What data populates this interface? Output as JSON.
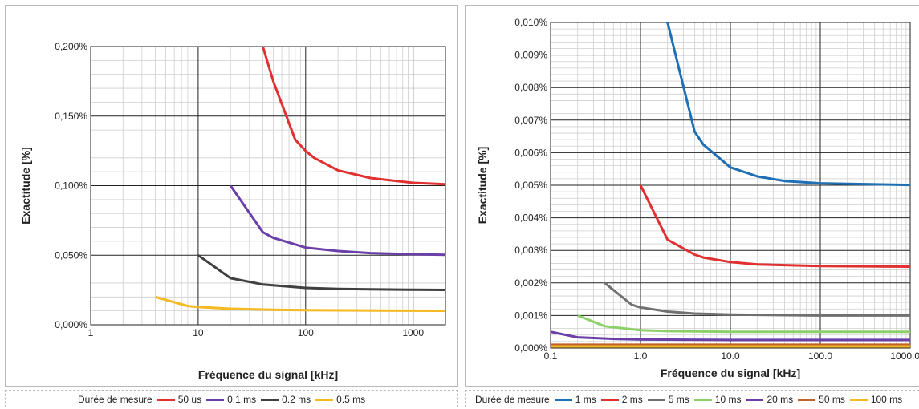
{
  "chart_data": [
    {
      "type": "line",
      "xscale": "log",
      "xlim": [
        1,
        2000
      ],
      "ylim": [
        0,
        0.2
      ],
      "xticks": [
        "1",
        "10",
        "100",
        "1000"
      ],
      "yticks": [
        "0,000%",
        "0,050%",
        "0,100%",
        "0,150%",
        "0,200%"
      ],
      "xlabel": "Fréquence du signal [kHz]",
      "ylabel": "Exactitude [%]",
      "grid": true,
      "legend_title": "Durée de mesure",
      "legend_position": "bottom",
      "series": [
        {
          "name": "50 us",
          "color": "#e03030",
          "x": [
            40,
            50,
            80,
            100,
            120,
            200,
            400,
            1000,
            2000
          ],
          "y": [
            0.2,
            0.175,
            0.133,
            0.125,
            0.12,
            0.111,
            0.1055,
            0.102,
            0.101
          ]
        },
        {
          "name": "0.1 ms",
          "color": "#6a3fa8",
          "x": [
            20,
            40,
            50,
            100,
            200,
            400,
            1000,
            2000
          ],
          "y": [
            0.1,
            0.0665,
            0.0625,
            0.0555,
            0.053,
            0.0515,
            0.0507,
            0.0503
          ]
        },
        {
          "name": "0.2 ms",
          "color": "#404040",
          "x": [
            10,
            20,
            40,
            100,
            200,
            400,
            1000,
            2000
          ],
          "y": [
            0.05,
            0.0335,
            0.029,
            0.0265,
            0.0258,
            0.0255,
            0.0252,
            0.0251
          ]
        },
        {
          "name": "0.5 ms",
          "color": "#f5b921",
          "x": [
            4,
            8,
            10,
            20,
            50,
            100,
            500,
            2000
          ],
          "y": [
            0.02,
            0.0135,
            0.0128,
            0.0115,
            0.0108,
            0.0105,
            0.0102,
            0.0101
          ]
        }
      ]
    },
    {
      "type": "line",
      "xscale": "log",
      "xlim": [
        0.1,
        1000
      ],
      "ylim": [
        0,
        0.01
      ],
      "xticks": [
        "0.1",
        "1.0",
        "10.0",
        "100.0",
        "1000.0"
      ],
      "yticks": [
        "0,000%",
        "0,001%",
        "0,002%",
        "0,003%",
        "0,004%",
        "0,005%",
        "0,006%",
        "0,007%",
        "0,008%",
        "0,009%",
        "0,010%"
      ],
      "xlabel": "Fréquence du signal [kHz]",
      "ylabel": "Exactitude [%]",
      "grid": true,
      "legend_title": "Durée de mesure",
      "legend_position": "bottom",
      "series": [
        {
          "name": "1 ms",
          "color": "#1f6fb4",
          "x": [
            2,
            4,
            5,
            10,
            20,
            40,
            100,
            1000
          ],
          "y": [
            0.01,
            0.00665,
            0.00625,
            0.00555,
            0.00527,
            0.00513,
            0.00506,
            0.00501
          ]
        },
        {
          "name": "2 ms",
          "color": "#e03030",
          "x": [
            1,
            2,
            4,
            5,
            10,
            20,
            100,
            1000
          ],
          "y": [
            0.005,
            0.00333,
            0.00287,
            0.00278,
            0.00264,
            0.00257,
            0.00252,
            0.0025
          ]
        },
        {
          "name": "5 ms",
          "color": "#707070",
          "x": [
            0.4,
            0.8,
            1,
            2,
            4,
            10,
            100,
            1000
          ],
          "y": [
            0.002,
            0.00133,
            0.00125,
            0.00112,
            0.00106,
            0.00103,
            0.001,
            0.001
          ]
        },
        {
          "name": "10 ms",
          "color": "#8cd06a",
          "x": [
            0.2,
            0.4,
            1,
            2,
            10,
            100,
            1000
          ],
          "y": [
            0.001,
            0.00067,
            0.00055,
            0.00052,
            0.0005,
            0.0005,
            0.0005
          ]
        },
        {
          "name": "20 ms",
          "color": "#6a3fa8",
          "x": [
            0.1,
            0.2,
            0.5,
            1,
            10,
            1000
          ],
          "y": [
            0.0005,
            0.00033,
            0.00028,
            0.00026,
            0.00025,
            0.00025
          ]
        },
        {
          "name": "50 ms",
          "color": "#c0622a",
          "x": [
            0.1,
            1,
            10,
            100,
            1000
          ],
          "y": [
            0.0001,
            0.0001,
            0.0001,
            0.0001,
            0.0001
          ]
        },
        {
          "name": "100 ms",
          "color": "#f5b921",
          "x": [
            0.1,
            1,
            10,
            100,
            1000
          ],
          "y": [
            5e-05,
            5e-05,
            5e-05,
            5e-05,
            5e-05
          ]
        }
      ]
    }
  ]
}
